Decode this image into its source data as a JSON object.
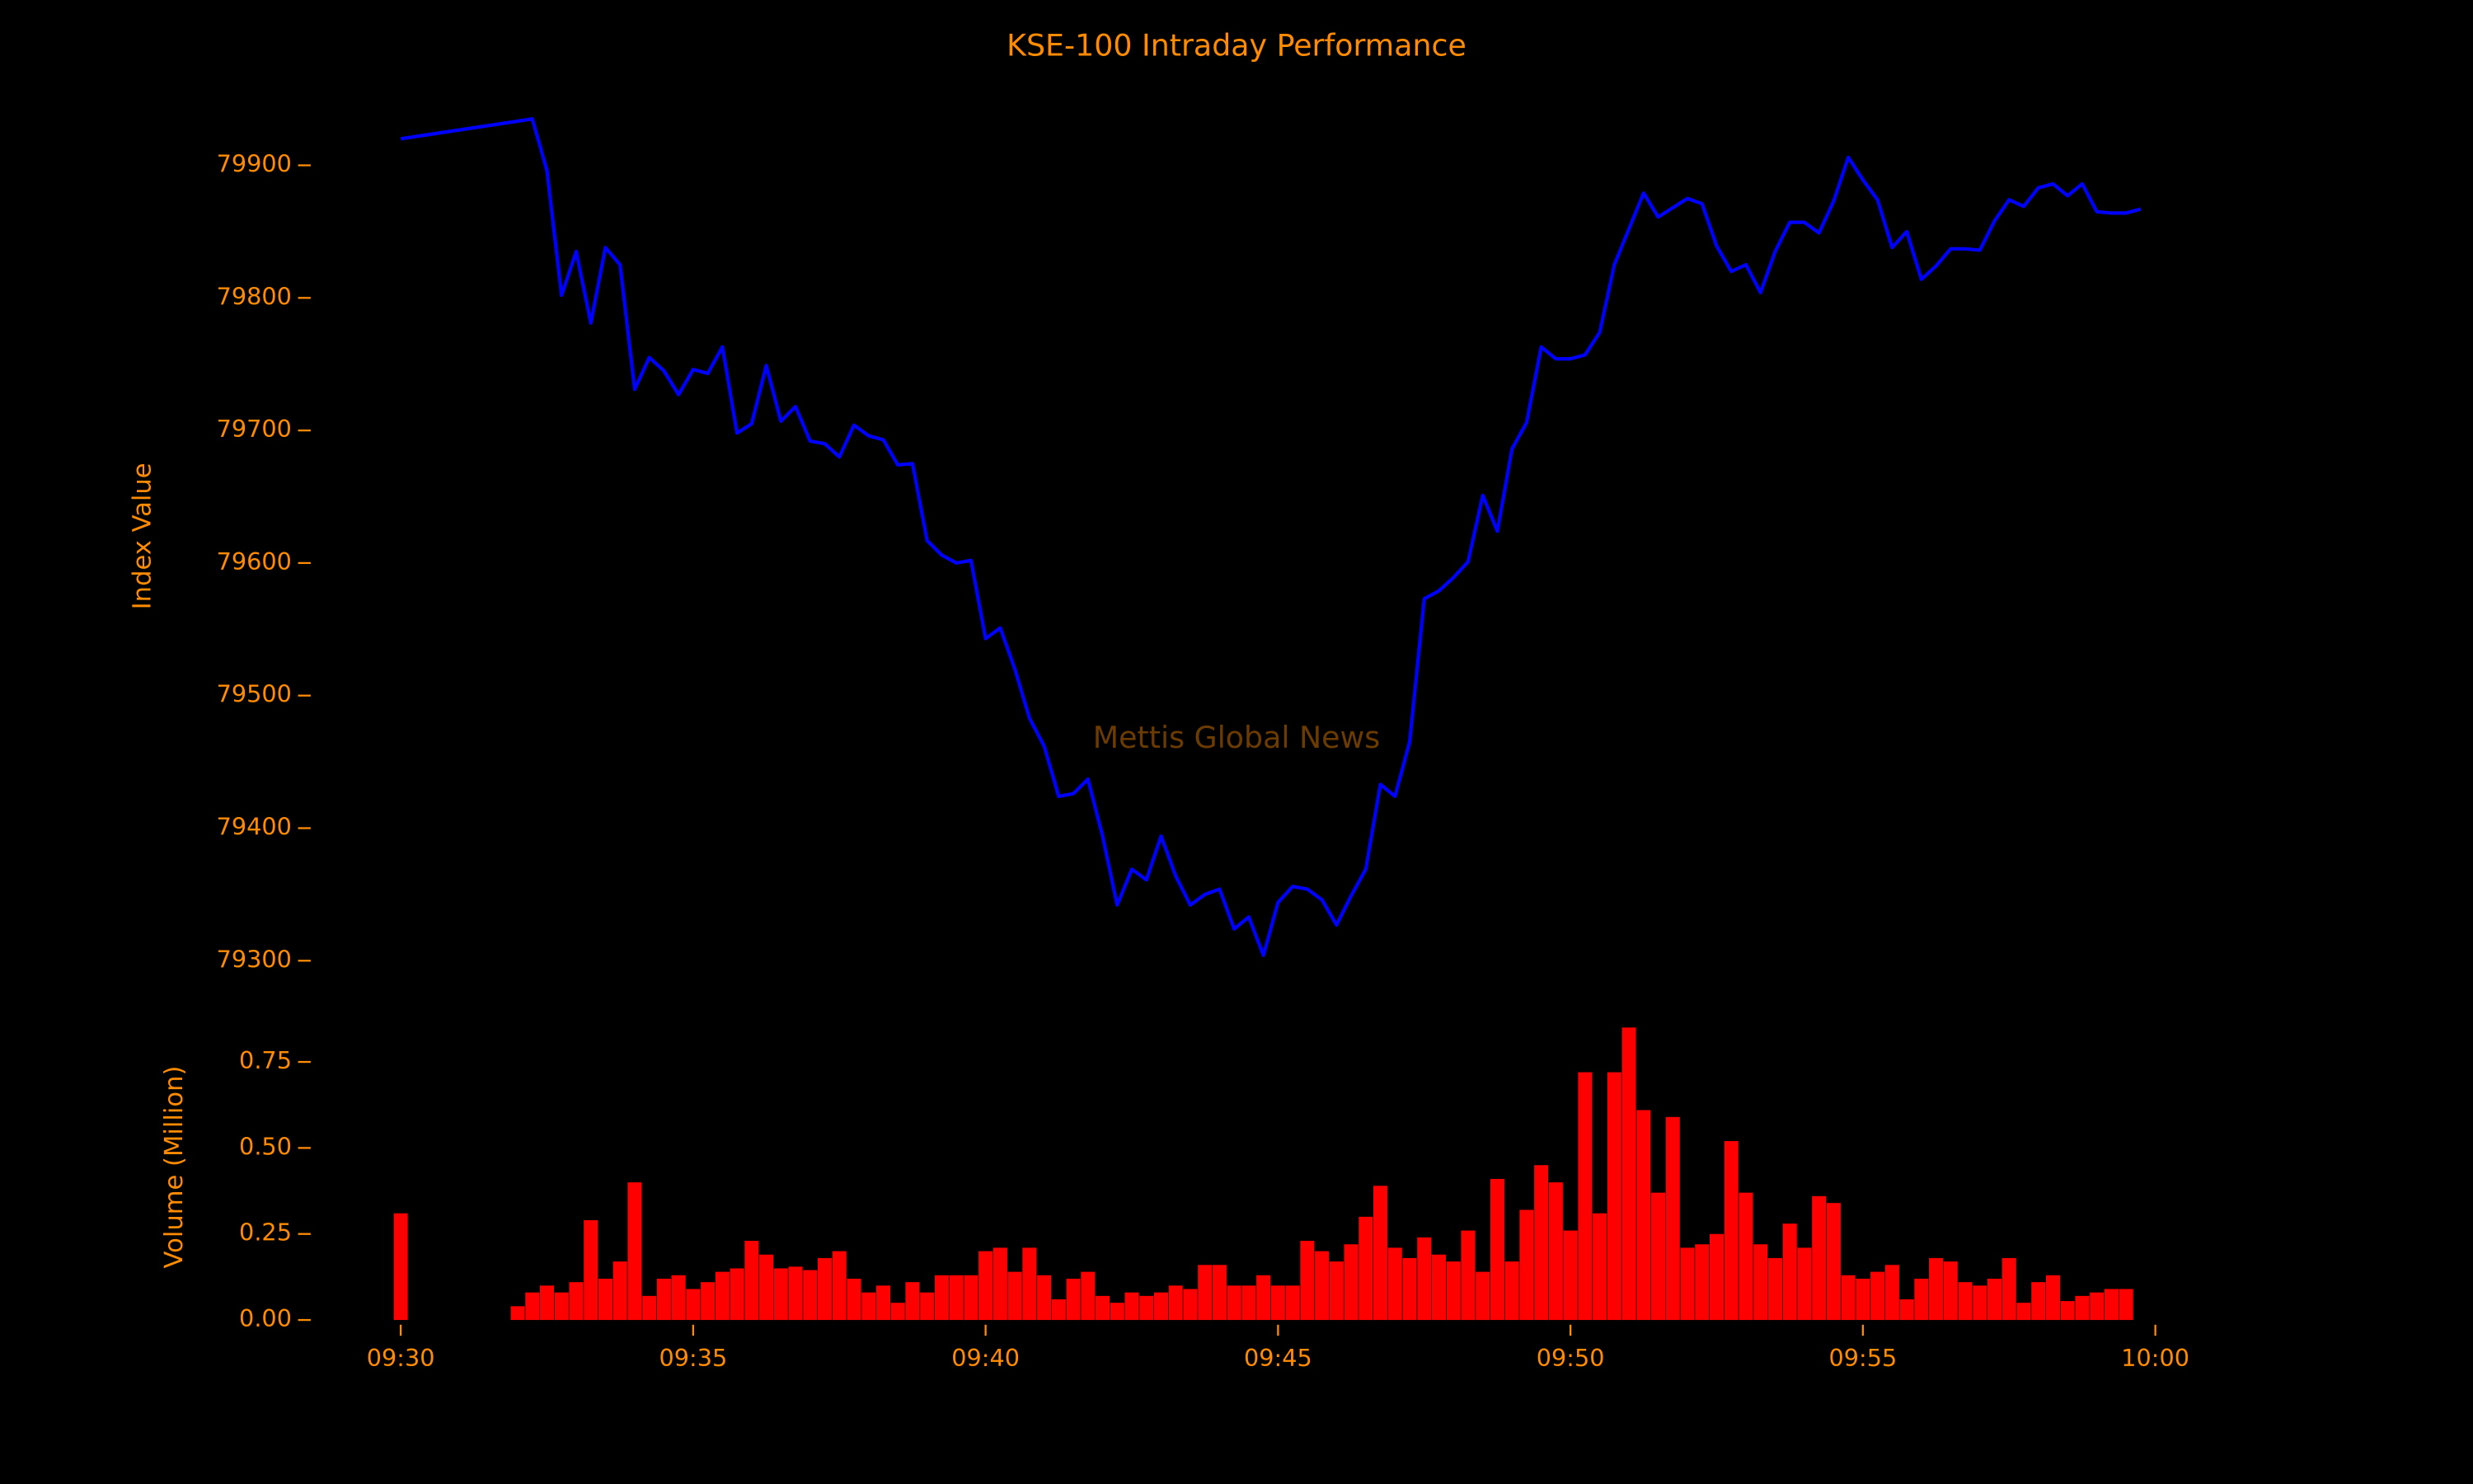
{
  "chart_data": [
    {
      "type": "line",
      "title": "KSE-100 Intraday Performance",
      "ylabel": "Index Value",
      "annotation": "Mettis Global News",
      "color": "#0000ff",
      "xlim": [
        -1,
        30.2
      ],
      "ylim": [
        79280,
        79945
      ],
      "yticks": [
        79300,
        79400,
        79500,
        79600,
        79700,
        79800,
        79900
      ],
      "x": [
        0,
        2.25,
        2.5,
        2.75,
        3,
        3.25,
        3.5,
        3.75,
        4,
        4.25,
        4.5,
        4.75,
        5,
        5.25,
        5.5,
        5.75,
        6,
        6.25,
        6.5,
        6.75,
        7,
        7.25,
        7.5,
        7.75,
        8,
        8.25,
        8.5,
        8.75,
        9,
        9.25,
        9.5,
        9.75,
        10,
        10.25,
        10.5,
        10.75,
        11,
        11.25,
        11.5,
        11.75,
        12,
        12.25,
        12.5,
        12.75,
        13,
        13.25,
        13.5,
        13.75,
        14,
        14.25,
        14.5,
        14.75,
        15,
        15.25,
        15.5,
        15.75,
        16,
        16.25,
        16.5,
        16.75,
        17,
        17.25,
        17.5,
        17.75,
        18,
        18.25,
        18.5,
        18.75,
        19,
        19.25,
        19.5,
        19.75,
        20,
        20.25,
        20.5,
        20.75,
        21,
        21.25,
        21.5,
        21.75,
        22,
        22.25,
        22.5,
        22.75,
        23,
        23.25,
        23.5,
        23.75,
        24,
        24.25,
        24.5,
        24.75,
        25,
        25.25,
        25.5,
        25.75,
        26,
        26.25,
        26.5,
        26.75,
        27,
        27.25,
        27.5,
        27.75,
        28,
        28.25,
        28.5,
        28.75,
        29,
        29.25,
        29.5,
        29.75
      ],
      "values": [
        79920,
        79935,
        79896,
        79802,
        79835,
        79781,
        79838,
        79825,
        79731,
        79755,
        79745,
        79727,
        79746,
        79743,
        79763,
        79698,
        79705,
        79749,
        79707,
        79718,
        79692,
        79690,
        79680,
        79704,
        79696,
        79693,
        79674,
        79675,
        79617,
        79606,
        79600,
        79602,
        79543,
        79551,
        79520,
        79483,
        79462,
        79424,
        79426,
        79437,
        79394,
        79342,
        79369,
        79361,
        79394,
        79364,
        79342,
        79350,
        79354,
        79324,
        79333,
        79304,
        79344,
        79356,
        79354,
        79346,
        79327,
        79349,
        79369,
        79433,
        79424,
        79465,
        79573,
        79579,
        79589,
        79601,
        79651,
        79624,
        79686,
        79706,
        79763,
        79754,
        79754,
        79757,
        79774,
        79825,
        79852,
        79879,
        79861,
        79868,
        79875,
        79871,
        79839,
        79820,
        79825,
        79804,
        79835,
        79857,
        79857,
        79849,
        79873,
        79906,
        79889,
        79874,
        79838,
        79850,
        79814,
        79824,
        79837,
        79837,
        79836,
        79858,
        79874,
        79869,
        79883,
        79886,
        79877,
        79886,
        79865,
        79864,
        79864,
        79867
      ]
    },
    {
      "type": "bar",
      "ylabel": "Volume (Million)",
      "color": "#ff0000",
      "xlim": [
        -1,
        30.2
      ],
      "ylim": [
        0,
        0.88
      ],
      "yticks": [
        {
          "value": 0,
          "label": "0.00"
        },
        {
          "value": 0.25,
          "label": "0.25"
        },
        {
          "value": 0.5,
          "label": "0.50"
        },
        {
          "value": 0.75,
          "label": "0.75"
        }
      ],
      "xticks": [
        {
          "value": 0,
          "label": "09:30"
        },
        {
          "value": 5,
          "label": "09:35"
        },
        {
          "value": 10,
          "label": "09:40"
        },
        {
          "value": 15,
          "label": "09:45"
        },
        {
          "value": 20,
          "label": "09:50"
        },
        {
          "value": 25,
          "label": "09:55"
        },
        {
          "value": 30,
          "label": "10:00"
        }
      ],
      "x": [
        0,
        2,
        2.25,
        2.5,
        2.75,
        3,
        3.25,
        3.5,
        3.75,
        4,
        4.25,
        4.5,
        4.75,
        5,
        5.25,
        5.5,
        5.75,
        6,
        6.25,
        6.5,
        6.75,
        7,
        7.25,
        7.5,
        7.75,
        8,
        8.25,
        8.5,
        8.75,
        9,
        9.25,
        9.5,
        9.75,
        10,
        10.25,
        10.5,
        10.75,
        11,
        11.25,
        11.5,
        11.75,
        12,
        12.25,
        12.5,
        12.75,
        13,
        13.25,
        13.5,
        13.75,
        14,
        14.25,
        14.5,
        14.75,
        15,
        15.25,
        15.5,
        15.75,
        16,
        16.25,
        16.5,
        16.75,
        17,
        17.25,
        17.5,
        17.75,
        18,
        18.25,
        18.5,
        18.75,
        19,
        19.25,
        19.5,
        19.75,
        20,
        20.25,
        20.5,
        20.75,
        21,
        21.25,
        21.5,
        21.75,
        22,
        22.25,
        22.5,
        22.75,
        23,
        23.25,
        23.5,
        23.75,
        24,
        24.25,
        24.5,
        24.75,
        25,
        25.25,
        25.5,
        25.75,
        26,
        26.25,
        26.5,
        26.75,
        27,
        27.25,
        27.5,
        27.75,
        28,
        28.25,
        28.5,
        28.75,
        29,
        29.25,
        29.5
      ],
      "values": [
        0.31,
        0.04,
        0.08,
        0.1,
        0.08,
        0.11,
        0.29,
        0.12,
        0.17,
        0.4,
        0.07,
        0.12,
        0.13,
        0.09,
        0.11,
        0.14,
        0.15,
        0.23,
        0.19,
        0.15,
        0.155,
        0.145,
        0.18,
        0.2,
        0.12,
        0.08,
        0.1,
        0.05,
        0.11,
        0.08,
        0.13,
        0.13,
        0.13,
        0.2,
        0.21,
        0.14,
        0.21,
        0.13,
        0.06,
        0.12,
        0.14,
        0.07,
        0.05,
        0.08,
        0.07,
        0.08,
        0.1,
        0.09,
        0.16,
        0.16,
        0.1,
        0.1,
        0.13,
        0.1,
        0.1,
        0.23,
        0.2,
        0.17,
        0.22,
        0.3,
        0.39,
        0.21,
        0.18,
        0.24,
        0.19,
        0.17,
        0.26,
        0.14,
        0.41,
        0.17,
        0.32,
        0.45,
        0.4,
        0.26,
        0.72,
        0.31,
        0.72,
        0.85,
        0.61,
        0.37,
        0.59,
        0.21,
        0.22,
        0.25,
        0.52,
        0.37,
        0.22,
        0.18,
        0.28,
        0.21,
        0.36,
        0.34,
        0.13,
        0.12,
        0.14,
        0.16,
        0.06,
        0.12,
        0.18,
        0.17,
        0.11,
        0.1,
        0.12,
        0.18,
        0.05,
        0.11,
        0.13,
        0.055,
        0.07,
        0.08,
        0.09,
        0.09
      ]
    }
  ]
}
